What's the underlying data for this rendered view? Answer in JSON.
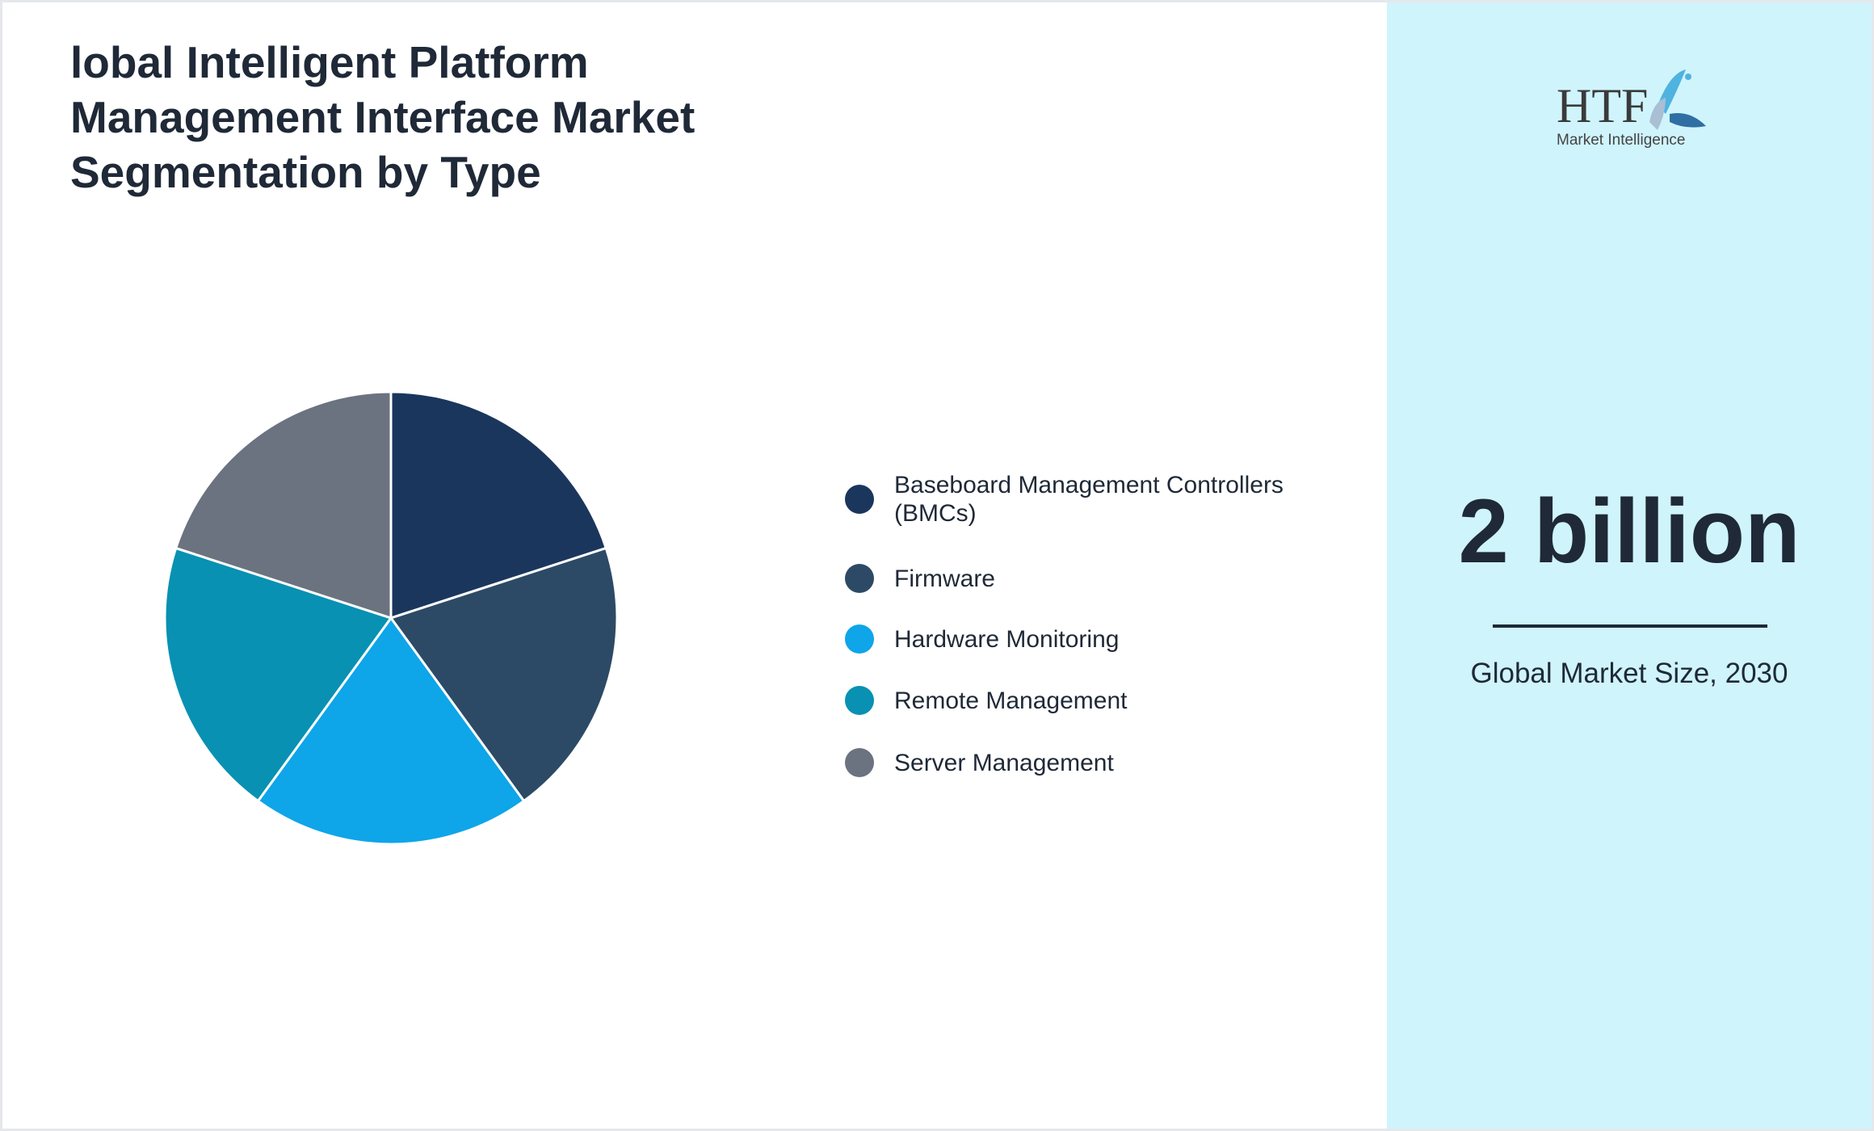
{
  "title": "lobal Intelligent Platform Management Interface Market Segmentation by Type",
  "chart_data": {
    "type": "pie",
    "title": "lobal Intelligent Platform Management Interface Market Segmentation by Type",
    "categories": [
      "Baseboard Management Controllers (BMCs)",
      "Firmware",
      "Hardware Monitoring",
      "Remote Management",
      "Server Management"
    ],
    "values": [
      20,
      20,
      20,
      20,
      20
    ],
    "colors": [
      "#1b365d",
      "#2c4a66",
      "#0ea5e9",
      "#0891b2",
      "#6b7280"
    ],
    "legend_position": "right"
  },
  "side": {
    "logo_text": "HTF Market Intelligence",
    "value": "2 billion",
    "caption": "Global Market Size, 2030"
  }
}
